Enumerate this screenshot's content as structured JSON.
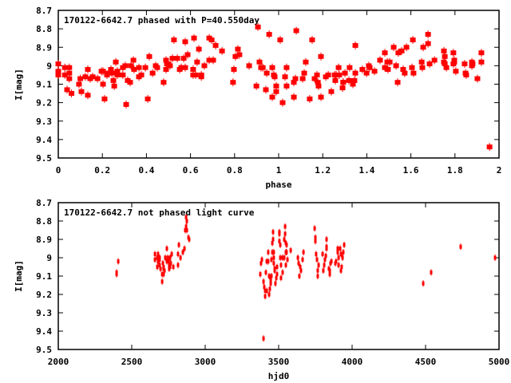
{
  "colors": {
    "points": "#ff0000",
    "axes": "#000000"
  },
  "chart_data": [
    {
      "type": "scatter",
      "title": "170122-6642.7 phased with P=40.550day",
      "xlabel": "phase",
      "ylabel": "I[mag]",
      "xlim": [
        0,
        2
      ],
      "ylim": [
        8.7,
        9.5
      ],
      "y_inverted": true,
      "x_ticks": [
        "0",
        "0.2",
        "0.4",
        "0.6",
        "0.8",
        "1",
        "1.2",
        "1.4",
        "1.6",
        "1.8",
        "2"
      ],
      "y_ticks": [
        "8.7",
        "8.8",
        "8.9",
        "9",
        "9.1",
        "9.2",
        "9.3",
        "9.4",
        "9.5"
      ],
      "grid": false,
      "points": [
        [
          0.0,
          9.03
        ],
        [
          0.0,
          8.99
        ],
        [
          0.0,
          9.05
        ],
        [
          0.03,
          9.01
        ],
        [
          0.03,
          9.05
        ],
        [
          0.04,
          9.13
        ],
        [
          0.05,
          9.07
        ],
        [
          0.05,
          9.01
        ],
        [
          0.05,
          9.04
        ],
        [
          0.06,
          9.15
        ],
        [
          0.094,
          9.1
        ],
        [
          0.1,
          9.07
        ],
        [
          0.105,
          9.14
        ],
        [
          0.123,
          9.06
        ],
        [
          0.134,
          9.02
        ],
        [
          0.134,
          9.16
        ],
        [
          0.145,
          9.07
        ],
        [
          0.156,
          9.06
        ],
        [
          0.178,
          9.07
        ],
        [
          0.196,
          9.03
        ],
        [
          0.203,
          9.03
        ],
        [
          0.203,
          9.1
        ],
        [
          0.21,
          9.18
        ],
        [
          0.221,
          9.05
        ],
        [
          0.228,
          9.04
        ],
        [
          0.239,
          9.02
        ],
        [
          0.243,
          9.04
        ],
        [
          0.25,
          9.08
        ],
        [
          0.254,
          9.11
        ],
        [
          0.261,
          8.98
        ],
        [
          0.268,
          9.03
        ],
        [
          0.268,
          9.05
        ],
        [
          0.293,
          9.01
        ],
        [
          0.293,
          9.05
        ],
        [
          0.304,
          9.0
        ],
        [
          0.308,
          9.21
        ],
        [
          0.315,
          9.08
        ],
        [
          0.326,
          9.09
        ],
        [
          0.33,
          9.0
        ],
        [
          0.341,
          8.97
        ],
        [
          0.344,
          9.02
        ],
        [
          0.366,
          9.01
        ],
        [
          0.366,
          9.06
        ],
        [
          0.377,
          9.05
        ],
        [
          0.395,
          9.01
        ],
        [
          0.406,
          9.18
        ],
        [
          0.413,
          8.95
        ],
        [
          0.428,
          9.04
        ],
        [
          0.442,
          9.0
        ],
        [
          0.449,
          9.01
        ],
        [
          0.478,
          9.09
        ],
        [
          0.489,
          8.97
        ],
        [
          0.489,
          9.02
        ],
        [
          0.493,
          8.99
        ],
        [
          0.5,
          8.99
        ],
        [
          0.507,
          9.0
        ],
        [
          0.518,
          8.96
        ],
        [
          0.525,
          8.86
        ],
        [
          0.54,
          8.96
        ],
        [
          0.551,
          9.02
        ],
        [
          0.558,
          9.01
        ],
        [
          0.569,
          8.96
        ],
        [
          0.576,
          9.01
        ],
        [
          0.576,
          8.87
        ],
        [
          0.587,
          8.94
        ],
        [
          0.612,
          9.02
        ],
        [
          0.612,
          9.05
        ],
        [
          0.616,
          8.85
        ],
        [
          0.623,
          9.05
        ],
        [
          0.63,
          8.98
        ],
        [
          0.638,
          8.91
        ],
        [
          0.649,
          9.05
        ],
        [
          0.649,
          9.06
        ],
        [
          0.663,
          9.0
        ],
        [
          0.685,
          8.85
        ],
        [
          0.685,
          8.97
        ],
        [
          0.696,
          8.86
        ],
        [
          0.703,
          8.97
        ],
        [
          0.714,
          8.89
        ],
        [
          0.743,
          8.92
        ],
        [
          0.793,
          9.09
        ],
        [
          0.797,
          9.02
        ],
        [
          0.804,
          8.95
        ],
        [
          0.815,
          8.91
        ],
        [
          0.822,
          8.94
        ],
        [
          0.866,
          9.0
        ],
        [
          0.899,
          9.11
        ],
        [
          0.906,
          8.79
        ],
        [
          0.913,
          8.98
        ],
        [
          0.92,
          9.01
        ],
        [
          0.928,
          9.01
        ],
        [
          0.942,
          9.13
        ],
        [
          0.946,
          9.04
        ],
        [
          0.957,
          8.83
        ],
        [
          0.971,
          9.01
        ],
        [
          0.971,
          9.17
        ],
        [
          0.978,
          9.05
        ],
        [
          0.982,
          9.06
        ],
        [
          0.989,
          9.11
        ],
        [
          0.989,
          9.14
        ],
        [
          1.007,
          8.86
        ],
        [
          1.018,
          9.2
        ],
        [
          1.029,
          9.06
        ],
        [
          1.036,
          9.11
        ],
        [
          1.036,
          9.01
        ],
        [
          1.069,
          9.09
        ],
        [
          1.069,
          9.17
        ],
        [
          1.076,
          9.07
        ],
        [
          1.08,
          8.81
        ],
        [
          1.109,
          9.07
        ],
        [
          1.116,
          9.04
        ],
        [
          1.123,
          8.98
        ],
        [
          1.141,
          9.18
        ],
        [
          1.152,
          8.86
        ],
        [
          1.163,
          9.07
        ],
        [
          1.174,
          9.05
        ],
        [
          1.178,
          9.09
        ],
        [
          1.181,
          9.11
        ],
        [
          1.192,
          8.95
        ],
        [
          1.192,
          9.17
        ],
        [
          1.214,
          9.06
        ],
        [
          1.225,
          9.05
        ],
        [
          1.239,
          9.14
        ],
        [
          1.254,
          9.05
        ],
        [
          1.257,
          9.08
        ],
        [
          1.261,
          9.05
        ],
        [
          1.272,
          9.01
        ],
        [
          1.275,
          9.05
        ],
        [
          1.29,
          9.12
        ],
        [
          1.293,
          9.09
        ],
        [
          1.293,
          9.09
        ],
        [
          1.301,
          9.04
        ],
        [
          1.319,
          9.08
        ],
        [
          1.322,
          9.01
        ],
        [
          1.337,
          9.1
        ],
        [
          1.344,
          9.08
        ],
        [
          1.348,
          9.04
        ],
        [
          1.348,
          8.89
        ],
        [
          1.38,
          9.02
        ],
        [
          1.399,
          9.04
        ],
        [
          1.409,
          9.0
        ],
        [
          1.413,
          9.01
        ],
        [
          1.435,
          9.03
        ],
        [
          1.46,
          8.97
        ],
        [
          1.482,
          8.93
        ],
        [
          1.482,
          9.01
        ],
        [
          1.493,
          8.98
        ],
        [
          1.496,
          9.02
        ],
        [
          1.504,
          8.98
        ],
        [
          1.522,
          8.9
        ],
        [
          1.533,
          9.0
        ],
        [
          1.54,
          9.09
        ],
        [
          1.543,
          8.93
        ],
        [
          1.558,
          8.92
        ],
        [
          1.565,
          9.02
        ],
        [
          1.572,
          9.04
        ],
        [
          1.58,
          8.9
        ],
        [
          1.605,
          9.01
        ],
        [
          1.609,
          8.86
        ],
        [
          1.612,
          9.04
        ],
        [
          1.649,
          8.98
        ],
        [
          1.652,
          9.01
        ],
        [
          1.656,
          8.9
        ],
        [
          1.678,
          8.83
        ],
        [
          1.678,
          8.88
        ],
        [
          1.685,
          8.99
        ],
        [
          1.707,
          8.97
        ],
        [
          1.75,
          8.92
        ],
        [
          1.75,
          8.98
        ],
        [
          1.754,
          8.95
        ],
        [
          1.754,
          8.99
        ],
        [
          1.761,
          9.01
        ],
        [
          1.793,
          8.93
        ],
        [
          1.793,
          8.99
        ],
        [
          1.797,
          8.97
        ],
        [
          1.797,
          8.98
        ],
        [
          1.804,
          9.03
        ],
        [
          1.844,
          8.99
        ],
        [
          1.848,
          9.04
        ],
        [
          1.851,
          9.05
        ],
        [
          1.877,
          8.98
        ],
        [
          1.877,
          9.0
        ],
        [
          1.88,
          8.99
        ],
        [
          1.902,
          9.07
        ],
        [
          1.92,
          8.93
        ],
        [
          1.92,
          8.98
        ],
        [
          1.957,
          9.44
        ]
      ]
    },
    {
      "type": "scatter",
      "title": "170122-6642.7 not phased light curve",
      "xlabel": "hjd0",
      "ylabel": "I[mag]",
      "xlim": [
        2000,
        5000
      ],
      "ylim": [
        8.7,
        9.5
      ],
      "y_inverted": true,
      "x_ticks": [
        "2000",
        "2500",
        "3000",
        "3500",
        "4000",
        "4500",
        "5000"
      ],
      "y_ticks": [
        "8.7",
        "8.8",
        "8.9",
        "9",
        "9.1",
        "9.2",
        "9.3",
        "9.4",
        "9.5"
      ],
      "grid": false,
      "points": [
        [
          2408,
          9.02
        ],
        [
          2397,
          9.08
        ],
        [
          2397,
          9.09
        ],
        [
          2870,
          8.78
        ],
        [
          2875,
          8.8
        ],
        [
          2870,
          8.83
        ],
        [
          2864,
          8.85
        ],
        [
          2875,
          8.85
        ],
        [
          2886,
          8.89
        ],
        [
          2891,
          8.9
        ],
        [
          2739,
          8.95
        ],
        [
          2821,
          8.93
        ],
        [
          2658,
          8.98
        ],
        [
          2679,
          8.98
        ],
        [
          2658,
          9.01
        ],
        [
          2674,
          9.0
        ],
        [
          2690,
          9.0
        ],
        [
          2690,
          9.01
        ],
        [
          2815,
          8.98
        ],
        [
          2848,
          8.97
        ],
        [
          2859,
          8.95
        ],
        [
          2772,
          8.98
        ],
        [
          2832,
          9.0
        ],
        [
          2728,
          9.0
        ],
        [
          2745,
          9.0
        ],
        [
          2761,
          9.0
        ],
        [
          2739,
          9.02
        ],
        [
          2679,
          9.02
        ],
        [
          2712,
          9.03
        ],
        [
          2750,
          9.02
        ],
        [
          2766,
          9.03
        ],
        [
          2690,
          9.04
        ],
        [
          2674,
          9.05
        ],
        [
          2717,
          9.05
        ],
        [
          2755,
          9.04
        ],
        [
          2783,
          9.05
        ],
        [
          2815,
          9.04
        ],
        [
          2696,
          9.06
        ],
        [
          2717,
          9.06
        ],
        [
          2755,
          9.06
        ],
        [
          2761,
          9.05
        ],
        [
          2723,
          9.07
        ],
        [
          2717,
          9.09
        ],
        [
          2707,
          9.09
        ],
        [
          2707,
          9.13
        ],
        [
          3544,
          8.83
        ],
        [
          3462,
          8.86
        ],
        [
          3505,
          8.86
        ],
        [
          3505,
          8.87
        ],
        [
          3544,
          8.87
        ],
        [
          3462,
          8.9
        ],
        [
          3538,
          8.9
        ],
        [
          3505,
          8.91
        ],
        [
          3457,
          8.92
        ],
        [
          3549,
          8.92
        ],
        [
          3554,
          8.93
        ],
        [
          3511,
          8.93
        ],
        [
          3582,
          8.96
        ],
        [
          3457,
          8.97
        ],
        [
          3467,
          8.97
        ],
        [
          3429,
          8.97
        ],
        [
          3549,
          8.97
        ],
        [
          3554,
          8.97
        ],
        [
          3467,
          9.0
        ],
        [
          3511,
          9.0
        ],
        [
          3527,
          9.0
        ],
        [
          3538,
          9.0
        ],
        [
          3560,
          9.01
        ],
        [
          3451,
          9.01
        ],
        [
          3386,
          9.01
        ],
        [
          3419,
          9.02
        ],
        [
          3429,
          9.02
        ],
        [
          3380,
          9.03
        ],
        [
          3467,
          9.03
        ],
        [
          3516,
          9.04
        ],
        [
          3549,
          9.04
        ],
        [
          3489,
          9.05
        ],
        [
          3473,
          9.06
        ],
        [
          3473,
          9.07
        ],
        [
          3413,
          9.08
        ],
        [
          3527,
          9.08
        ],
        [
          3375,
          9.09
        ],
        [
          3451,
          9.1
        ],
        [
          3489,
          9.09
        ],
        [
          3435,
          9.1
        ],
        [
          3484,
          9.11
        ],
        [
          3516,
          9.11
        ],
        [
          3446,
          9.12
        ],
        [
          3397,
          9.13
        ],
        [
          3446,
          9.14
        ],
        [
          3478,
          9.14
        ],
        [
          3402,
          9.16
        ],
        [
          3440,
          9.17
        ],
        [
          3408,
          9.18
        ],
        [
          3419,
          9.18
        ],
        [
          3435,
          9.2
        ],
        [
          3408,
          9.21
        ],
        [
          3397,
          9.44
        ],
        [
          3669,
          8.97
        ],
        [
          3631,
          9.0
        ],
        [
          3663,
          9.01
        ],
        [
          3636,
          9.03
        ],
        [
          3647,
          9.05
        ],
        [
          3652,
          9.07
        ],
        [
          3641,
          9.1
        ],
        [
          3745,
          8.84
        ],
        [
          3750,
          8.89
        ],
        [
          3750,
          8.91
        ],
        [
          3826,
          8.9
        ],
        [
          3826,
          8.94
        ],
        [
          3826,
          8.95
        ],
        [
          3755,
          8.98
        ],
        [
          3799,
          8.98
        ],
        [
          3761,
          9.01
        ],
        [
          3821,
          8.99
        ],
        [
          3815,
          9.01
        ],
        [
          3772,
          9.04
        ],
        [
          3810,
          9.04
        ],
        [
          3766,
          9.07
        ],
        [
          3804,
          9.07
        ],
        [
          3766,
          9.1
        ],
        [
          3859,
          9.02
        ],
        [
          3853,
          9.03
        ],
        [
          3842,
          9.06
        ],
        [
          3848,
          9.07
        ],
        [
          3848,
          9.09
        ],
        [
          3946,
          8.93
        ],
        [
          3902,
          8.95
        ],
        [
          3919,
          8.95
        ],
        [
          3902,
          8.97
        ],
        [
          3940,
          8.97
        ],
        [
          3924,
          8.98
        ],
        [
          3908,
          9.0
        ],
        [
          3935,
          9.0
        ],
        [
          3891,
          9.02
        ],
        [
          3886,
          9.03
        ],
        [
          3908,
          9.04
        ],
        [
          3929,
          9.05
        ],
        [
          3924,
          9.07
        ],
        [
          4484,
          9.14
        ],
        [
          4538,
          9.08
        ],
        [
          4739,
          8.94
        ],
        [
          4973,
          9.0
        ]
      ]
    }
  ]
}
